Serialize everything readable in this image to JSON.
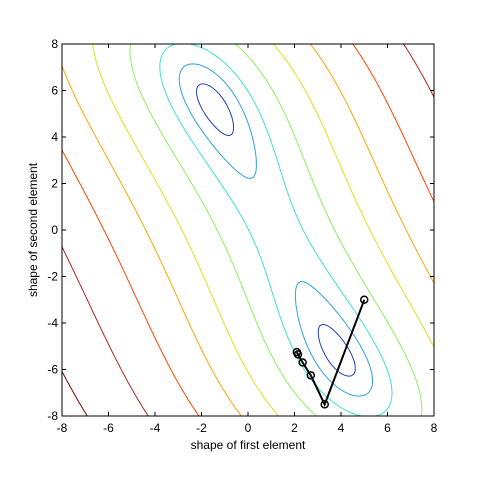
{
  "chart_data": {
    "type": "contour",
    "title": "",
    "xlabel": "shape of first element",
    "ylabel": "shape of second element",
    "xlim": [
      -8,
      8
    ],
    "ylim": [
      -8,
      8
    ],
    "xticks": [
      "-8",
      "-6",
      "-4",
      "-2",
      "0",
      "2",
      "4",
      "6",
      "8"
    ],
    "yticks": [
      "-8",
      "-6",
      "-4",
      "-2",
      "0",
      "2",
      "4",
      "6",
      "8"
    ],
    "grid": false,
    "legend": "none",
    "colors": {
      "levels": [
        "#1f3fbf",
        "#2fa0e0",
        "#40e0d0",
        "#90ee60",
        "#e0e020",
        "#ffa500",
        "#ff4500",
        "#b22222",
        "#800000"
      ],
      "path": "#000000"
    },
    "contour_levels": [
      1,
      4,
      10,
      25,
      55,
      100,
      170,
      280,
      450
    ],
    "descent_path": {
      "x": [
        5.0,
        3.3,
        2.7,
        2.35,
        2.15,
        2.1
      ],
      "y": [
        -3.0,
        -7.5,
        -6.25,
        -5.7,
        -5.35,
        -5.25
      ]
    }
  }
}
